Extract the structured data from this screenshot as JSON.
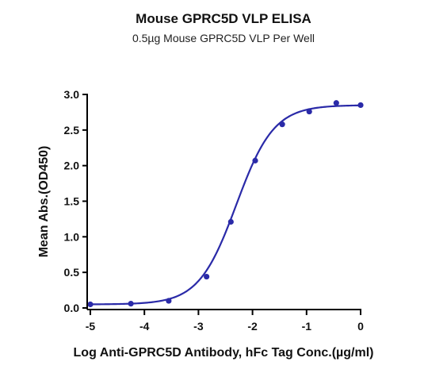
{
  "chart_data": {
    "type": "scatter",
    "title": "Mouse GPRC5D VLP ELISA",
    "subtitle": "0.5µg Mouse GPRC5D VLP Per Well",
    "xlabel": "Log Anti-GPRC5D Antibody, hFc Tag Conc.(µg/ml)",
    "ylabel": "Mean Abs.(OD450)",
    "xlim": [
      -5,
      0
    ],
    "ylim": [
      0,
      3.0
    ],
    "xticks": [
      "-5",
      "-4",
      "-3",
      "-2",
      "-1",
      "0"
    ],
    "yticks": [
      "0.0",
      "0.5",
      "1.0",
      "1.5",
      "2.0",
      "2.5",
      "3.0"
    ],
    "grid": false,
    "legend": "none",
    "color": "#2a2aa8",
    "series": [
      {
        "x": [
          -5.0,
          -4.25,
          -3.55,
          -2.85,
          -2.4,
          -1.95,
          -1.45,
          -0.95,
          -0.45,
          0.0
        ],
        "y": [
          0.05,
          0.06,
          0.1,
          0.44,
          1.21,
          2.07,
          2.58,
          2.76,
          2.88,
          2.85
        ],
        "fit": {
          "bottom": 0.05,
          "top": 2.85,
          "logEC50": -2.3,
          "hill": 1.25
        }
      }
    ]
  }
}
